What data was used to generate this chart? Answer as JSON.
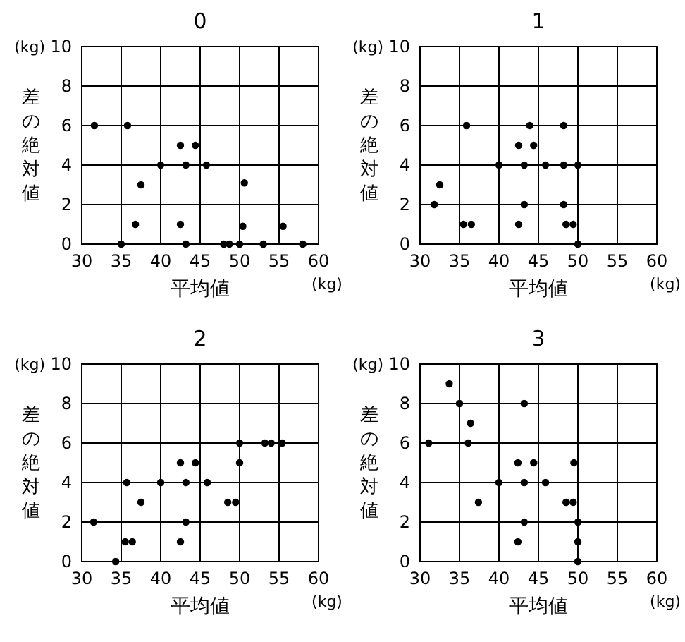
{
  "chart_data": [
    {
      "type": "scatter",
      "title": "0",
      "xlabel": "平均値",
      "ylabel": "差の絶対値",
      "annotations": [
        "(kg)",
        "(kg)"
      ],
      "color": "#000000",
      "marker": "circle",
      "grid": true,
      "xlim": [
        30,
        60
      ],
      "xticks": [
        30,
        35,
        40,
        45,
        50,
        55,
        60
      ],
      "ylim": [
        0,
        10
      ],
      "yticks": [
        0,
        2,
        4,
        6,
        8,
        10
      ],
      "x": [
        31.6,
        35.8,
        42.5,
        44.4,
        40,
        43.2,
        45.8,
        37.5,
        50.6,
        36.8,
        42.5,
        50.4,
        55.5,
        35,
        43.2,
        48,
        48.7,
        50,
        53,
        58
      ],
      "values": [
        6,
        6,
        5,
        5,
        4,
        4,
        4,
        3,
        3.1,
        1,
        1,
        0.9,
        0.9,
        0,
        0,
        0,
        0,
        0,
        0,
        0
      ]
    },
    {
      "type": "scatter",
      "title": "1",
      "xlabel": "平均値",
      "ylabel": "差の絶対値",
      "annotations": [
        "(kg)",
        "(kg)"
      ],
      "color": "#000000",
      "marker": "circle",
      "grid": true,
      "xlim": [
        30,
        60
      ],
      "xticks": [
        30,
        35,
        40,
        45,
        50,
        55,
        60
      ],
      "ylim": [
        0,
        10
      ],
      "yticks": [
        0,
        2,
        4,
        6,
        8,
        10
      ],
      "x": [
        31.8,
        32.5,
        35.9,
        35.5,
        36.5,
        40,
        42.5,
        44.4,
        43.9,
        43.2,
        45.9,
        43.2,
        42.5,
        48.2,
        48.2,
        50,
        48.2,
        48.5,
        49.4,
        50
      ],
      "values": [
        2,
        3,
        6,
        1,
        1,
        4,
        5,
        5,
        6,
        4,
        4,
        2,
        1,
        6,
        4,
        4,
        2,
        1,
        1,
        0
      ]
    },
    {
      "type": "scatter",
      "title": "2",
      "xlabel": "平均値",
      "ylabel": "差の絶対値",
      "annotations": [
        "(kg)",
        "(kg)"
      ],
      "color": "#000000",
      "marker": "circle",
      "grid": true,
      "xlim": [
        30,
        60
      ],
      "xticks": [
        30,
        35,
        40,
        45,
        50,
        55,
        60
      ],
      "ylim": [
        0,
        10
      ],
      "yticks": [
        0,
        2,
        4,
        6,
        8,
        10
      ],
      "x": [
        31.5,
        34.3,
        35.7,
        35.5,
        36.4,
        37.5,
        40,
        42.5,
        44.4,
        43.2,
        45.9,
        43.2,
        42.5,
        48.5,
        49.5,
        50,
        50,
        53.2,
        54,
        55.4
      ],
      "values": [
        2,
        0,
        4,
        1,
        1,
        3,
        4,
        5,
        5,
        4,
        4,
        2,
        1,
        3,
        3,
        6,
        5,
        6,
        6,
        6
      ]
    },
    {
      "type": "scatter",
      "title": "3",
      "xlabel": "平均値",
      "ylabel": "差の絶対値",
      "annotations": [
        "(kg)",
        "(kg)"
      ],
      "color": "#000000",
      "marker": "circle",
      "grid": true,
      "xlim": [
        30,
        60
      ],
      "xticks": [
        30,
        35,
        40,
        45,
        50,
        55,
        60
      ],
      "ylim": [
        0,
        10
      ],
      "yticks": [
        0,
        2,
        4,
        6,
        8,
        10
      ],
      "x": [
        33.7,
        35,
        36.4,
        31.1,
        36.1,
        37.4,
        40,
        43.2,
        42.4,
        44.4,
        45.9,
        43.2,
        43.2,
        42.4,
        49.5,
        48.5,
        49.4,
        50,
        50,
        50
      ],
      "values": [
        9,
        8,
        7,
        6,
        6,
        3,
        4,
        8,
        5,
        5,
        4,
        4,
        2,
        1,
        5,
        3,
        3,
        2,
        1,
        0
      ]
    }
  ]
}
